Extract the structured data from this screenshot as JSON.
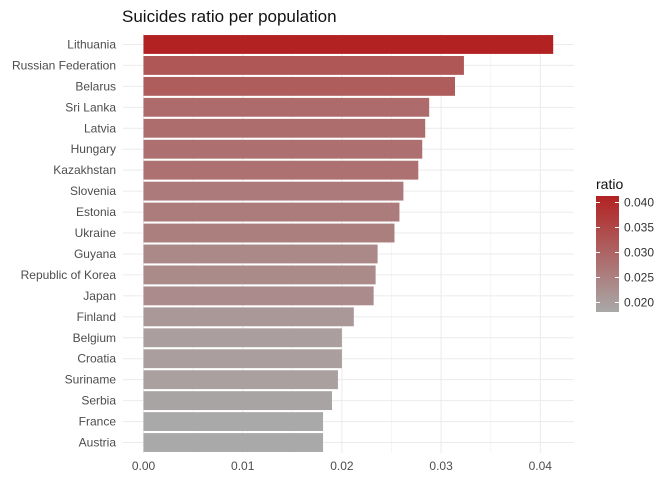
{
  "chart_data": {
    "type": "bar",
    "orientation": "horizontal",
    "title": "Suicides ratio per population",
    "xlabel": "",
    "ylabel": "",
    "categories": [
      "Lithuania",
      "Russian Federation",
      "Belarus",
      "Sri Lanka",
      "Latvia",
      "Hungary",
      "Kazakhstan",
      "Slovenia",
      "Estonia",
      "Ukraine",
      "Guyana",
      "Republic of Korea",
      "Japan",
      "Finland",
      "Belgium",
      "Croatia",
      "Suriname",
      "Serbia",
      "France",
      "Austria"
    ],
    "values": [
      0.0413,
      0.0323,
      0.0314,
      0.0288,
      0.0284,
      0.0281,
      0.0277,
      0.0262,
      0.0258,
      0.0253,
      0.0236,
      0.0234,
      0.0232,
      0.0212,
      0.02,
      0.02,
      0.0196,
      0.019,
      0.0181,
      0.0181
    ],
    "xlim": [
      0,
      0.0435
    ],
    "x_ticks": [
      "0.00",
      "0.01",
      "0.02",
      "0.03",
      "0.04"
    ],
    "x_tick_values": [
      0,
      0.01,
      0.02,
      0.03,
      0.04
    ],
    "grid": true,
    "legend": {
      "title": "ratio",
      "position": "right",
      "labels": [
        "0.040",
        "0.035",
        "0.030",
        "0.025",
        "0.020"
      ],
      "label_values": [
        0.04,
        0.035,
        0.03,
        0.025,
        0.02
      ],
      "range": [
        0.0181,
        0.0413
      ]
    },
    "colors": {
      "low": "#A9A9A9",
      "high": "#B22222",
      "grid_major": "#ebebeb",
      "grid_minor": "#f5f5f5"
    }
  }
}
